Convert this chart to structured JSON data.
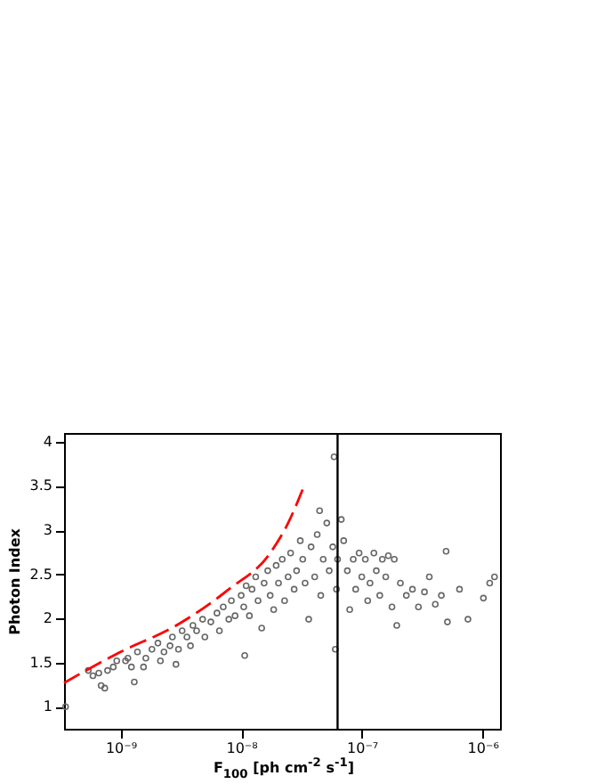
{
  "chart_data": {
    "type": "scatter",
    "xlabel": "F$_{100}$ [ph cm$^{-2}$ s$^{-1}$]",
    "ylabel": "Photon Index",
    "log": "x",
    "xlim": [
      3.4e-10,
      1.4e-06
    ],
    "ylim": [
      0.75,
      4.1
    ],
    "xticks": [
      {
        "value": 1e-09,
        "label": "10⁻⁹"
      },
      {
        "value": 1e-08,
        "label": "10⁻⁸"
      },
      {
        "value": 1e-07,
        "label": "10⁻⁷"
      },
      {
        "value": 1e-06,
        "label": "10⁻⁶"
      }
    ],
    "yticks": [
      1,
      1.5,
      2,
      2.5,
      3,
      3.5,
      4
    ],
    "grid": false,
    "ref_lines": [
      {
        "axis": "x",
        "value": 6.3e-08,
        "color": "#000000"
      }
    ],
    "series": [
      {
        "color": "#666666",
        "marker": "circle",
        "x": [
          3.5e-10,
          5.9e-10,
          5.4e-10,
          6.9e-10,
          7.4e-10,
          6.6e-10,
          7.8e-10,
          9.3e-10,
          8.7e-10,
          1.1e-09,
          1.15e-09,
          1.3e-09,
          1.23e-09,
          1.38e-09,
          1.55e-09,
          1.62e-09,
          1.82e-09,
          2.04e-09,
          2.14e-09,
          2.29e-09,
          2.57e-09,
          2.69e-09,
          2.88e-09,
          3.02e-09,
          3.24e-09,
          3.55e-09,
          3.8e-09,
          3.98e-09,
          4.27e-09,
          4.79e-09,
          5e-09,
          5.6e-09,
          6.3e-09,
          6.6e-09,
          7.1e-09,
          7.9e-09,
          8.3e-09,
          8.9e-09,
          1e-08,
          1.05e-08,
          1.07e-08,
          1.1e-08,
          1.17e-08,
          1.23e-08,
          1.32e-08,
          1.38e-08,
          1.48e-08,
          1.55e-08,
          1.66e-08,
          1.74e-08,
          1.86e-08,
          1.95e-08,
          2.04e-08,
          2.19e-08,
          2.29e-08,
          2.45e-08,
          2.57e-08,
          2.75e-08,
          2.88e-08,
          3.09e-08,
          3.24e-08,
          3.39e-08,
          3.63e-08,
          3.8e-08,
          4.07e-08,
          4.27e-08,
          4.47e-08,
          4.57e-08,
          4.79e-08,
          5.13e-08,
          5.37e-08,
          5.75e-08,
          5.89e-08,
          6.03e-08,
          6.17e-08,
          6.3e-08,
          6.76e-08,
          7.08e-08,
          7.59e-08,
          7.94e-08,
          8.5e-08,
          8.9e-08,
          9.5e-08,
          1e-07,
          1.07e-07,
          1.12e-07,
          1.17e-07,
          1.26e-07,
          1.32e-07,
          1.41e-07,
          1.48e-07,
          1.58e-07,
          1.66e-07,
          1.78e-07,
          1.86e-07,
          1.95e-07,
          2.09e-07,
          2.34e-07,
          2.63e-07,
          2.95e-07,
          3.31e-07,
          3.63e-07,
          4.07e-07,
          4.57e-07,
          5e-07,
          5.13e-07,
          6.46e-07,
          7.59e-07,
          1.02e-06,
          1.15e-06,
          1.26e-06
        ],
        "values": [
          1.0,
          1.35,
          1.41,
          1.24,
          1.21,
          1.38,
          1.41,
          1.52,
          1.45,
          1.52,
          1.55,
          1.28,
          1.45,
          1.62,
          1.45,
          1.55,
          1.65,
          1.72,
          1.52,
          1.62,
          1.69,
          1.79,
          1.48,
          1.65,
          1.86,
          1.79,
          1.69,
          1.92,
          1.86,
          1.99,
          1.79,
          1.96,
          2.06,
          1.86,
          2.13,
          1.99,
          2.2,
          2.03,
          2.26,
          2.13,
          1.58,
          2.37,
          2.03,
          2.33,
          2.47,
          2.2,
          1.89,
          2.4,
          2.54,
          2.26,
          2.1,
          2.6,
          2.4,
          2.67,
          2.2,
          2.47,
          2.74,
          2.33,
          2.54,
          2.88,
          2.67,
          2.4,
          1.99,
          2.81,
          2.47,
          2.95,
          3.22,
          2.26,
          2.67,
          3.08,
          2.54,
          2.81,
          3.83,
          1.65,
          2.33,
          2.67,
          3.12,
          2.88,
          2.54,
          2.1,
          2.67,
          2.33,
          2.74,
          2.47,
          2.67,
          2.2,
          2.4,
          2.74,
          2.54,
          2.26,
          2.67,
          2.47,
          2.71,
          2.13,
          2.67,
          1.92,
          2.4,
          2.26,
          2.33,
          2.13,
          2.3,
          2.47,
          2.16,
          2.26,
          2.76,
          1.96,
          2.33,
          1.99,
          2.23,
          2.4,
          2.47
        ]
      },
      {
        "type": "line",
        "color": "#ff0000",
        "line_style": "dashed",
        "marker": "none",
        "x": [
          3.4e-10,
          1e-09,
          2.9e-09,
          7.9e-09,
          1.74e-08,
          2.45e-08,
          3.3e-08
        ],
        "values": [
          1.27,
          1.62,
          1.92,
          2.33,
          2.74,
          3.08,
          3.49
        ]
      }
    ]
  }
}
